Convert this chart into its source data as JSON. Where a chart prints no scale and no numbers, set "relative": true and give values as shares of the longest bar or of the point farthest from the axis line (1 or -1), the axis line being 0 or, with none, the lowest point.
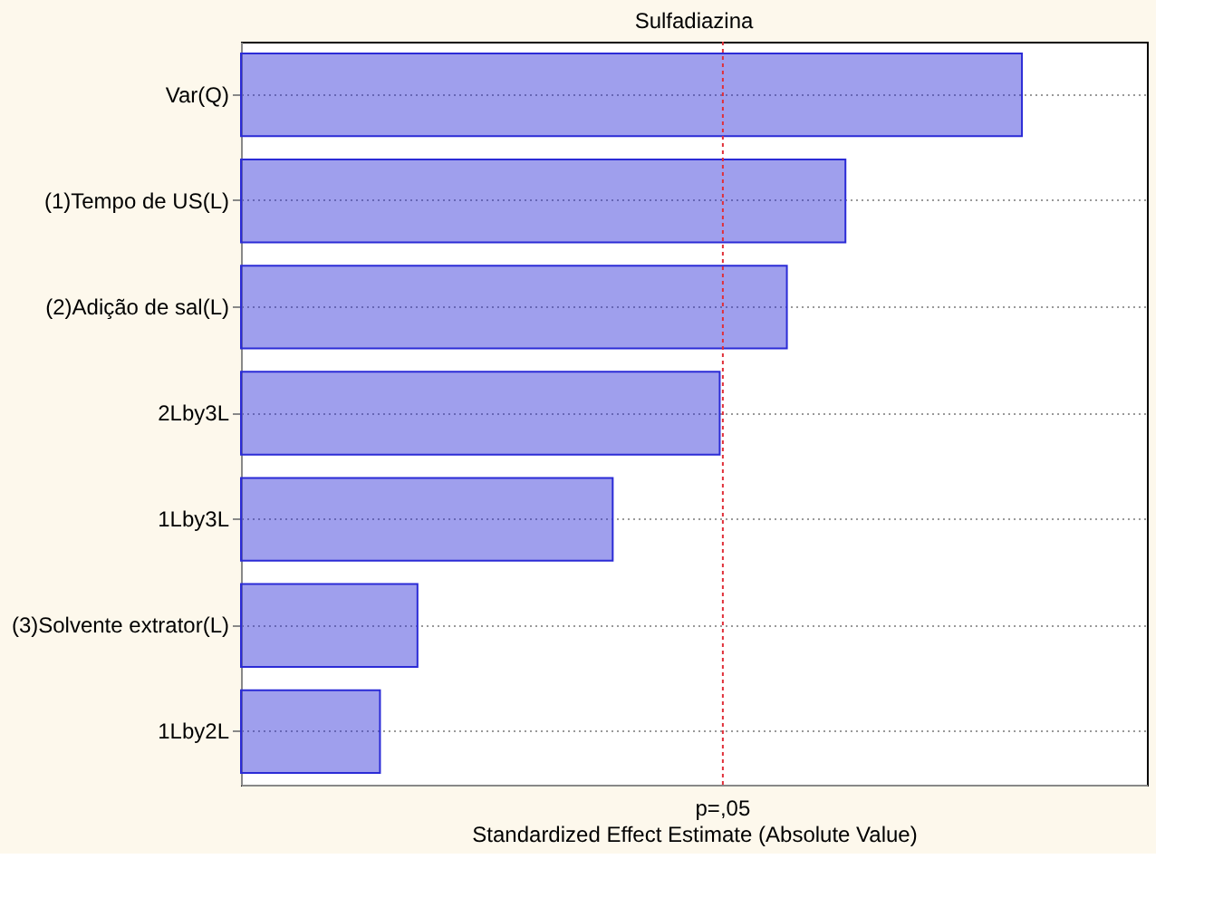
{
  "chart_data": {
    "type": "bar",
    "orientation": "horizontal",
    "relative": true,
    "title": "Sulfadiazina",
    "xlabel": "Standardized Effect Estimate (Absolute Value)",
    "categories": [
      "Var(Q)",
      "(1)Tempo de US(L)",
      "(2)Adição de sal(L)",
      "2Lby3L",
      "1Lby3L",
      "(3)Solvente extrator(L)",
      "1Lby2L"
    ],
    "values": [
      1,
      0.774,
      0.699,
      0.613,
      0.476,
      0.226,
      0.178
    ],
    "color": "#2b2bd6",
    "ref_lines": [
      {
        "axis": "x",
        "value": 0.617,
        "label": "p=,05",
        "color": "#e0303a",
        "line_style": "dotted"
      }
    ],
    "grid": "y"
  }
}
